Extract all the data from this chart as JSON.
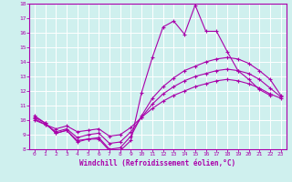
{
  "xlabel": "Windchill (Refroidissement éolien,°C)",
  "xlim": [
    -0.5,
    23.5
  ],
  "ylim": [
    8,
    18
  ],
  "yticks": [
    8,
    9,
    10,
    11,
    12,
    13,
    14,
    15,
    16,
    17,
    18
  ],
  "xticks": [
    0,
    1,
    2,
    3,
    4,
    5,
    6,
    7,
    8,
    9,
    10,
    11,
    12,
    13,
    14,
    15,
    16,
    17,
    18,
    19,
    20,
    21,
    22,
    23
  ],
  "background_color": "#cff0ee",
  "grid_color": "#ffffff",
  "line_color": "#aa00aa",
  "lines": [
    {
      "x": [
        0,
        1,
        2,
        3,
        4,
        5,
        6,
        7,
        8,
        9,
        10,
        11,
        12,
        13,
        14,
        15,
        16,
        17,
        18,
        19,
        20,
        21,
        22
      ],
      "y": [
        10.3,
        9.8,
        9.1,
        9.3,
        8.5,
        8.7,
        8.7,
        7.9,
        7.9,
        8.6,
        11.9,
        14.3,
        16.4,
        16.8,
        15.9,
        17.9,
        16.1,
        16.1,
        14.7,
        13.4,
        12.8,
        12.1,
        11.7
      ]
    },
    {
      "x": [
        0,
        1,
        2,
        3,
        4,
        5,
        6,
        7,
        8,
        9,
        10,
        11,
        12,
        13,
        14,
        15,
        16,
        17,
        18,
        19,
        20,
        21,
        22,
        23
      ],
      "y": [
        10.2,
        9.8,
        9.1,
        9.3,
        8.6,
        8.7,
        8.8,
        8.0,
        8.1,
        8.9,
        10.3,
        11.5,
        12.3,
        12.9,
        13.4,
        13.7,
        14.0,
        14.2,
        14.3,
        14.2,
        13.9,
        13.4,
        12.8,
        11.7
      ]
    },
    {
      "x": [
        0,
        1,
        2,
        3,
        4,
        5,
        6,
        7,
        8,
        9,
        10,
        11,
        12,
        13,
        14,
        15,
        16,
        17,
        18,
        19,
        20,
        21,
        22,
        23
      ],
      "y": [
        10.1,
        9.7,
        9.2,
        9.4,
        8.8,
        9.0,
        9.1,
        8.4,
        8.5,
        9.2,
        10.2,
        11.1,
        11.8,
        12.3,
        12.7,
        13.0,
        13.2,
        13.4,
        13.5,
        13.4,
        13.2,
        12.8,
        12.2,
        11.6
      ]
    },
    {
      "x": [
        0,
        1,
        2,
        3,
        4,
        5,
        6,
        7,
        8,
        9,
        10,
        11,
        12,
        13,
        14,
        15,
        16,
        17,
        18,
        19,
        20,
        21,
        22,
        23
      ],
      "y": [
        10.0,
        9.7,
        9.4,
        9.6,
        9.2,
        9.3,
        9.4,
        8.9,
        9.0,
        9.5,
        10.2,
        10.8,
        11.3,
        11.7,
        12.0,
        12.3,
        12.5,
        12.7,
        12.8,
        12.7,
        12.5,
        12.2,
        11.8,
        11.5
      ]
    }
  ]
}
